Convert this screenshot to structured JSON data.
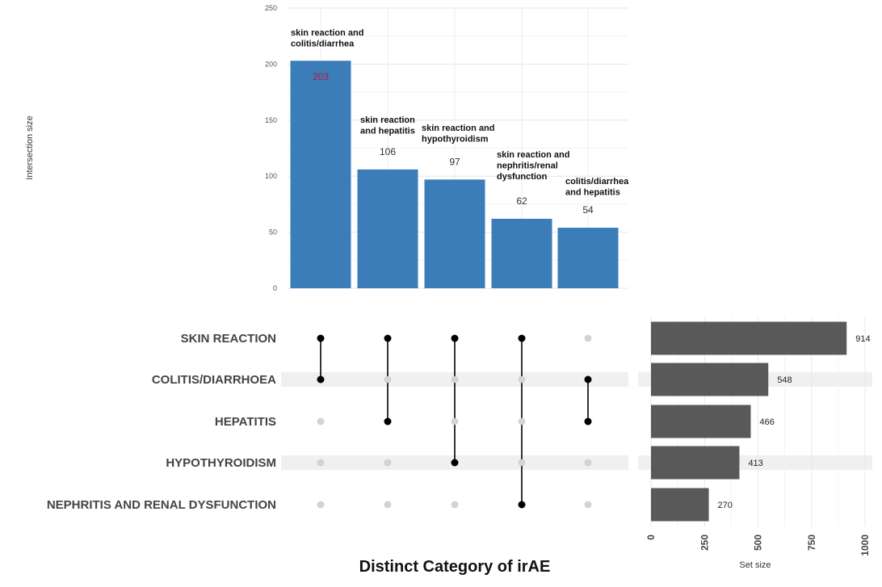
{
  "chart_data": [
    {
      "type": "bar",
      "ylabel": "Intersection size",
      "ylim": [
        0,
        250
      ],
      "yticks": [
        0,
        50,
        100,
        150,
        200,
        250
      ],
      "color": "#3A7DB8",
      "grid": true,
      "bars": [
        {
          "label": "skin reaction and colitis/diarrhea",
          "label_lines": [
            "skin reaction and",
            "colitis/diarrhea"
          ],
          "value": 203,
          "value_color": "#C0143C"
        },
        {
          "label": "skin reaction and hepatitis",
          "label_lines": [
            "skin reaction",
            "and hepatitis"
          ],
          "value": 106,
          "value_color": "#333333"
        },
        {
          "label": "skin reaction and hypothyroidism",
          "label_lines": [
            "skin reaction and",
            "hypothyroidism"
          ],
          "value": 97,
          "value_color": "#333333"
        },
        {
          "label": "skin reaction and nephritis/renal dysfunction",
          "label_lines": [
            "skin reaction and",
            "nephritis/renal",
            "dysfunction"
          ],
          "value": 62,
          "value_color": "#333333"
        },
        {
          "label": "colitis/diarrhea and hepatitis",
          "label_lines": [
            "colitis/diarrhea",
            "and hepatitis"
          ],
          "value": 54,
          "value_color": "#333333"
        }
      ]
    },
    {
      "type": "bar",
      "orientation": "horizontal",
      "xlabel": "Set size",
      "xlim": [
        0,
        1000
      ],
      "xticks": [
        0,
        250,
        500,
        750,
        1000
      ],
      "color": "#595959",
      "categories": [
        "SKIN REACTION",
        "COLITIS/DIARRHOEA",
        "HEPATITIS",
        "HYPOTHYROIDISM",
        "NEPHRITIS AND RENAL DYSFUNCTION"
      ],
      "values": [
        914,
        548,
        466,
        413,
        270
      ]
    },
    {
      "type": "matrix",
      "title": "Distinct Category of irAE",
      "sets": [
        "SKIN REACTION",
        "COLITIS/DIARRHOEA",
        "HEPATITIS",
        "HYPOTHYROIDISM",
        "NEPHRITIS AND RENAL DYSFUNCTION"
      ],
      "membership": [
        [
          1,
          1,
          0,
          0,
          0
        ],
        [
          1,
          0,
          1,
          0,
          0
        ],
        [
          1,
          0,
          0,
          1,
          0
        ],
        [
          1,
          0,
          0,
          0,
          1
        ],
        [
          0,
          1,
          1,
          0,
          0
        ]
      ]
    }
  ]
}
